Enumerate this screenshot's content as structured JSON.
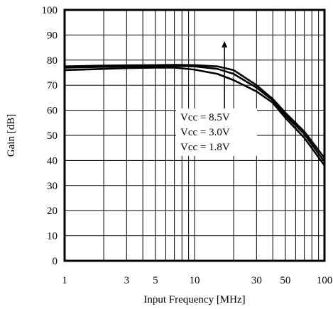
{
  "chart_data": {
    "type": "line",
    "xlabel": "Input Frequency [MHz]",
    "ylabel": "Gain [dB]",
    "xscale": "log",
    "xlim": [
      1,
      100
    ],
    "ylim": [
      0,
      100
    ],
    "grid": true,
    "x_ticks": [
      1,
      3,
      5,
      10,
      30,
      50,
      100
    ],
    "x_tick_labels": [
      "1",
      "3",
      "5",
      "10",
      "30",
      "50",
      "100"
    ],
    "y_ticks": [
      0,
      10,
      20,
      30,
      40,
      50,
      60,
      70,
      80,
      90,
      100
    ],
    "y_tick_labels": [
      "0",
      "10",
      "20",
      "30",
      "40",
      "50",
      "60",
      "70",
      "80",
      "90",
      "100"
    ],
    "series": [
      {
        "name": "Vcc = 8.5V",
        "x": [
          1,
          2,
          3,
          5,
          7,
          10,
          15,
          20,
          30,
          40,
          50,
          70,
          100
        ],
        "y": [
          77.5,
          77.8,
          77.9,
          78.0,
          78.1,
          78.0,
          77.5,
          76.0,
          70.0,
          64.5,
          59.0,
          51.5,
          41.0
        ]
      },
      {
        "name": "Vcc = 3.0V",
        "x": [
          1,
          2,
          3,
          5,
          7,
          10,
          15,
          20,
          30,
          40,
          50,
          70,
          100
        ],
        "y": [
          77.0,
          77.3,
          77.5,
          77.6,
          77.7,
          77.5,
          76.5,
          74.5,
          69.0,
          64.0,
          58.0,
          50.5,
          39.5
        ]
      },
      {
        "name": "Vcc = 1.8V",
        "x": [
          1,
          2,
          3,
          5,
          7,
          10,
          15,
          20,
          30,
          40,
          50,
          70,
          100
        ],
        "y": [
          76.0,
          76.5,
          76.8,
          77.0,
          77.0,
          76.2,
          74.5,
          72.0,
          67.5,
          63.0,
          57.0,
          49.0,
          38.0
        ]
      }
    ],
    "annotation": {
      "lines": [
        "Vcc = 8.5V",
        "Vcc = 3.0V",
        "Vcc = 1.8V"
      ],
      "arrow_from_y": 59,
      "arrow_to_y": 87,
      "arrow_x": 17
    }
  }
}
